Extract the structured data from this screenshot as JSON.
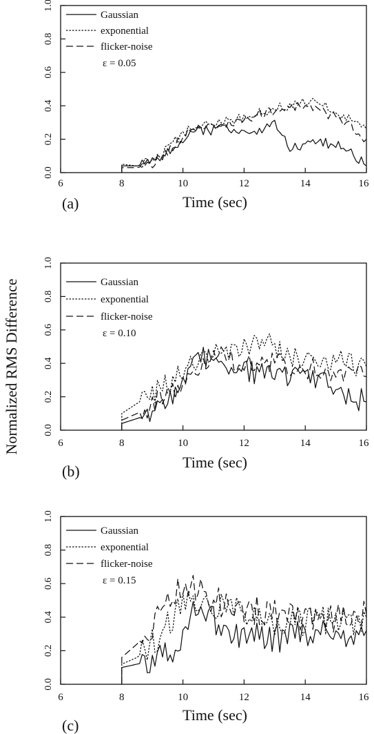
{
  "chart_data": [
    {
      "type": "line",
      "panel_label": "(a)",
      "xlabel": "Time (sec)",
      "ylabel": "Normalized RMS Difference",
      "xlim": [
        6,
        16
      ],
      "ylim": [
        0,
        1
      ],
      "xticks": [
        "6",
        "8",
        "10",
        "12",
        "14",
        "16"
      ],
      "yticks": [
        "0.0",
        "0.2",
        "0.4",
        "0.6",
        "0.8",
        "1.0"
      ],
      "legend_placement": "top-left",
      "annotation": "ε = 0.05",
      "series": [
        {
          "name": "Gaussian",
          "dash": "solid",
          "x": [
            8.0,
            8.5,
            9.0,
            9.5,
            10.0,
            10.5,
            11.0,
            11.5,
            12.0,
            12.5,
            13.0,
            13.5,
            14.0,
            14.5,
            15.0,
            15.5,
            16.0
          ],
          "y": [
            0.04,
            0.04,
            0.06,
            0.12,
            0.2,
            0.26,
            0.25,
            0.27,
            0.24,
            0.24,
            0.3,
            0.14,
            0.16,
            0.18,
            0.17,
            0.12,
            0.04
          ]
        },
        {
          "name": "exponential",
          "dash": "dotted",
          "x": [
            8.0,
            8.5,
            9.0,
            9.5,
            10.0,
            10.5,
            11.0,
            11.5,
            12.0,
            12.5,
            13.0,
            13.5,
            14.0,
            14.5,
            15.0,
            15.5,
            16.0
          ],
          "y": [
            0.05,
            0.04,
            0.07,
            0.14,
            0.24,
            0.28,
            0.29,
            0.32,
            0.33,
            0.36,
            0.38,
            0.41,
            0.42,
            0.41,
            0.36,
            0.31,
            0.26
          ]
        },
        {
          "name": "flicker-noise",
          "dash": "dashed",
          "x": [
            8.0,
            8.5,
            9.0,
            9.5,
            10.0,
            10.5,
            11.0,
            11.5,
            12.0,
            12.5,
            13.0,
            13.5,
            14.0,
            14.5,
            15.0,
            15.5,
            16.0
          ],
          "y": [
            0.03,
            0.03,
            0.05,
            0.12,
            0.22,
            0.27,
            0.27,
            0.29,
            0.31,
            0.35,
            0.37,
            0.39,
            0.4,
            0.37,
            0.33,
            0.27,
            0.2
          ]
        }
      ]
    },
    {
      "type": "line",
      "panel_label": "(b)",
      "xlabel": "Time (sec)",
      "ylabel": "Normalized RMS Difference",
      "xlim": [
        6,
        16
      ],
      "ylim": [
        0,
        1
      ],
      "xticks": [
        "6",
        "8",
        "10",
        "12",
        "14",
        "16"
      ],
      "yticks": [
        "0.0",
        "0.2",
        "0.4",
        "0.6",
        "0.8",
        "1.0"
      ],
      "legend_placement": "top-left",
      "annotation": "ε = 0.10",
      "series": [
        {
          "name": "Gaussian",
          "dash": "solid",
          "x": [
            8.0,
            8.5,
            9.0,
            9.5,
            10.0,
            10.5,
            11.0,
            11.5,
            12.0,
            12.5,
            13.0,
            13.5,
            14.0,
            14.5,
            15.0,
            15.5,
            16.0
          ],
          "y": [
            0.04,
            0.07,
            0.1,
            0.15,
            0.3,
            0.4,
            0.48,
            0.38,
            0.36,
            0.34,
            0.32,
            0.33,
            0.33,
            0.3,
            0.26,
            0.2,
            0.17
          ]
        },
        {
          "name": "exponential",
          "dash": "dotted",
          "x": [
            8.0,
            8.5,
            9.0,
            9.5,
            10.0,
            10.5,
            11.0,
            11.5,
            12.0,
            12.5,
            13.0,
            13.5,
            14.0,
            14.5,
            15.0,
            15.5,
            16.0
          ],
          "y": [
            0.1,
            0.16,
            0.22,
            0.28,
            0.34,
            0.44,
            0.48,
            0.45,
            0.48,
            0.52,
            0.5,
            0.45,
            0.4,
            0.42,
            0.41,
            0.4,
            0.38
          ]
        },
        {
          "name": "flicker-noise",
          "dash": "dashed",
          "x": [
            8.0,
            8.5,
            9.0,
            9.5,
            10.0,
            10.5,
            11.0,
            11.5,
            12.0,
            12.5,
            13.0,
            13.5,
            14.0,
            14.5,
            15.0,
            15.5,
            16.0
          ],
          "y": [
            0.06,
            0.1,
            0.15,
            0.2,
            0.28,
            0.38,
            0.45,
            0.42,
            0.38,
            0.4,
            0.4,
            0.38,
            0.37,
            0.36,
            0.36,
            0.34,
            0.32
          ]
        }
      ]
    },
    {
      "type": "line",
      "panel_label": "(c)",
      "xlabel": "Time (sec)",
      "ylabel": "Normalized RMS Difference",
      "xlim": [
        6,
        16
      ],
      "ylim": [
        0,
        1
      ],
      "xticks": [
        "6",
        "8",
        "10",
        "12",
        "14",
        "16"
      ],
      "yticks": [
        "0.0",
        "0.2",
        "0.4",
        "0.6",
        "0.8",
        "1.0"
      ],
      "legend_placement": "top-left",
      "annotation": "ε = 0.15",
      "series": [
        {
          "name": "Gaussian",
          "dash": "solid",
          "x": [
            8.0,
            8.5,
            9.0,
            9.5,
            10.0,
            10.5,
            11.0,
            11.5,
            12.0,
            12.5,
            13.0,
            13.5,
            14.0,
            14.5,
            15.0,
            15.5,
            16.0
          ],
          "y": [
            0.1,
            0.12,
            0.14,
            0.18,
            0.3,
            0.46,
            0.38,
            0.3,
            0.31,
            0.29,
            0.26,
            0.3,
            0.29,
            0.3,
            0.29,
            0.3,
            0.32
          ]
        },
        {
          "name": "exponential",
          "dash": "dotted",
          "x": [
            8.0,
            8.5,
            9.0,
            9.5,
            10.0,
            10.5,
            11.0,
            11.5,
            12.0,
            12.5,
            13.0,
            13.5,
            14.0,
            14.5,
            15.0,
            15.5,
            16.0
          ],
          "y": [
            0.12,
            0.16,
            0.24,
            0.36,
            0.46,
            0.5,
            0.48,
            0.46,
            0.42,
            0.4,
            0.38,
            0.36,
            0.38,
            0.38,
            0.4,
            0.38,
            0.4
          ]
        },
        {
          "name": "flicker-noise",
          "dash": "dashed",
          "x": [
            8.0,
            8.5,
            9.0,
            9.5,
            10.0,
            10.5,
            11.0,
            11.5,
            12.0,
            12.5,
            13.0,
            13.5,
            14.0,
            14.5,
            15.0,
            15.5,
            16.0
          ],
          "y": [
            0.16,
            0.24,
            0.36,
            0.48,
            0.58,
            0.56,
            0.5,
            0.46,
            0.44,
            0.44,
            0.42,
            0.4,
            0.4,
            0.38,
            0.4,
            0.4,
            0.42
          ]
        }
      ]
    }
  ]
}
